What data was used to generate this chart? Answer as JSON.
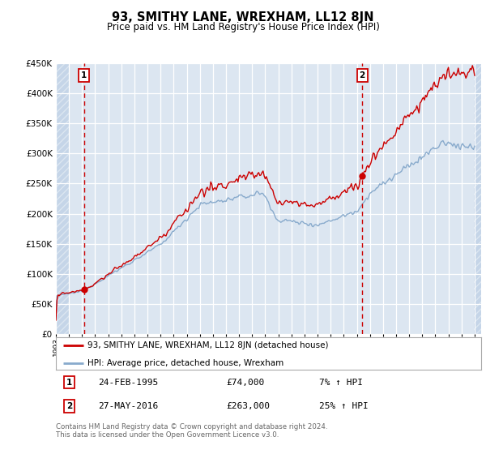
{
  "title": "93, SMITHY LANE, WREXHAM, LL12 8JN",
  "subtitle": "Price paid vs. HM Land Registry's House Price Index (HPI)",
  "legend_line1": "93, SMITHY LANE, WREXHAM, LL12 8JN (detached house)",
  "legend_line2": "HPI: Average price, detached house, Wrexham",
  "sale1_date": "24-FEB-1995",
  "sale1_price": 74000,
  "sale1_label": "7% ↑ HPI",
  "sale2_date": "27-MAY-2016",
  "sale2_price": 263000,
  "sale2_label": "25% ↑ HPI",
  "footnote": "Contains HM Land Registry data © Crown copyright and database right 2024.\nThis data is licensed under the Open Government Licence v3.0.",
  "bg_color": "#ffffff",
  "plot_bg_color": "#dce6f1",
  "hatch_color": "#c5d5e8",
  "grid_color": "#ffffff",
  "red_line_color": "#cc0000",
  "blue_line_color": "#88aacc",
  "dashed_line_color": "#cc0000",
  "marker_color": "#cc0000",
  "box_edge_color": "#cc0000",
  "ylim": [
    0,
    450000
  ],
  "yticks": [
    0,
    50000,
    100000,
    150000,
    200000,
    250000,
    300000,
    350000,
    400000,
    450000
  ],
  "xmin": 1993.0,
  "xmax": 2025.5,
  "sale1_year": 1995.14,
  "sale2_year": 2016.41,
  "hatch_left_end": 1994.08,
  "hatch_right_start": 2024.92
}
